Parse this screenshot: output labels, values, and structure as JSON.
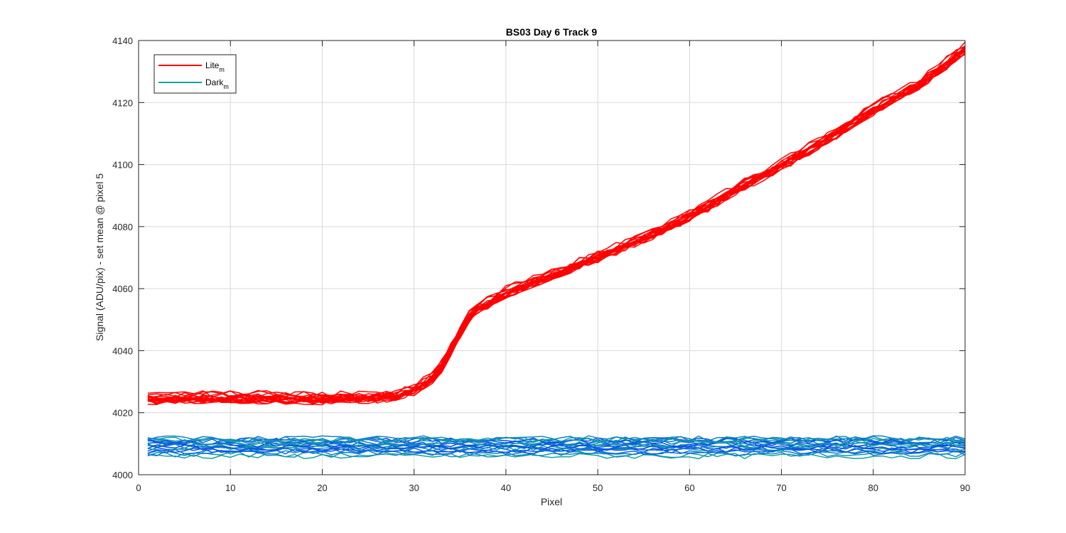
{
  "chart_data": {
    "type": "line",
    "title": "BS03 Day 6 Track 9",
    "xlabel": "Pixel",
    "ylabel": "Signal (ADU/pix) - set mean @ pixel 5",
    "xlim": [
      0,
      90
    ],
    "ylim": [
      4000,
      4140
    ],
    "xticks": [
      0,
      10,
      20,
      30,
      40,
      50,
      60,
      70,
      80,
      90
    ],
    "yticks": [
      4000,
      4020,
      4040,
      4060,
      4080,
      4100,
      4120,
      4140
    ],
    "grid": true,
    "legend_position": "top-left",
    "legend": [
      {
        "base": "Lite",
        "sub": "m",
        "color": "#ff0000"
      },
      {
        "base": "Dark",
        "sub": "m",
        "color": "#17a2a2"
      }
    ],
    "series": [
      {
        "group": "Lite",
        "color": "#ff0000",
        "lines": 20,
        "spread": 1.5,
        "x": [
          1,
          5,
          10,
          15,
          20,
          25,
          28,
          30,
          32,
          33,
          34,
          35,
          36,
          37,
          38,
          40,
          45,
          50,
          55,
          60,
          65,
          70,
          75,
          80,
          85,
          90
        ],
        "mean": [
          4024.5,
          4025,
          4025,
          4025,
          4024.7,
          4025.2,
          4025.5,
          4027.5,
          4031.5,
          4035,
          4040.5,
          4046,
          4051,
          4054,
          4055.5,
          4059,
          4064.5,
          4070.5,
          4076.5,
          4083.5,
          4092,
          4100,
          4108.5,
          4118,
          4126,
          4137.5
        ]
      },
      {
        "group": "Dark",
        "colors": [
          "#17a2a2",
          "#1590b8",
          "#1080c8",
          "#0a66dd",
          "#0b4ee8"
        ],
        "lines": 20,
        "spread": 0.8,
        "levels": [
          4006,
          4006.5,
          4007,
          4007.5,
          4008,
          4008.5,
          4009,
          4009.2,
          4009.5,
          4009.8,
          4010,
          4010.3,
          4010.6,
          4010.9,
          4011.1,
          4011.3,
          4011.5,
          4011.7,
          4007.8,
          4008.8
        ],
        "x_start": 1,
        "x_end": 90
      }
    ]
  }
}
